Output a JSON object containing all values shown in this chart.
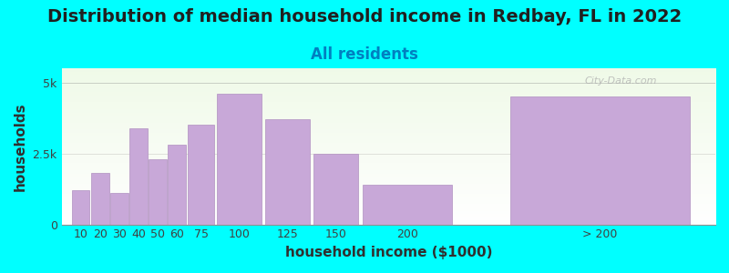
{
  "title": "Distribution of median household income in Redbay, FL in 2022",
  "subtitle": "All residents",
  "xlabel": "household income ($1000)",
  "ylabel": "households",
  "background_color": "#00FFFF",
  "bar_color": "#c8a8d8",
  "bar_edge_color": "#b090c0",
  "watermark": "City-Data.com",
  "categories": [
    "10",
    "20",
    "30",
    "40",
    "50",
    "60",
    "75",
    "100",
    "125",
    "150",
    "200",
    "> 200"
  ],
  "values": [
    1200,
    1800,
    1100,
    3400,
    2300,
    2800,
    3500,
    4600,
    3700,
    2500,
    1400,
    4500
  ],
  "bar_widths": [
    10,
    10,
    10,
    10,
    10,
    10,
    15,
    25,
    25,
    25,
    50,
    100
  ],
  "bar_lefts": [
    5,
    15,
    25,
    35,
    45,
    55,
    65,
    80,
    105,
    130,
    155,
    230
  ],
  "yticks": [
    0,
    2500,
    5000
  ],
  "ytick_labels": [
    "0",
    "2.5k",
    "5k"
  ],
  "ylim": [
    0,
    5500
  ],
  "xlim": [
    0,
    340
  ],
  "title_fontsize": 14,
  "subtitle_fontsize": 12,
  "axis_label_fontsize": 11,
  "tick_fontsize": 9
}
